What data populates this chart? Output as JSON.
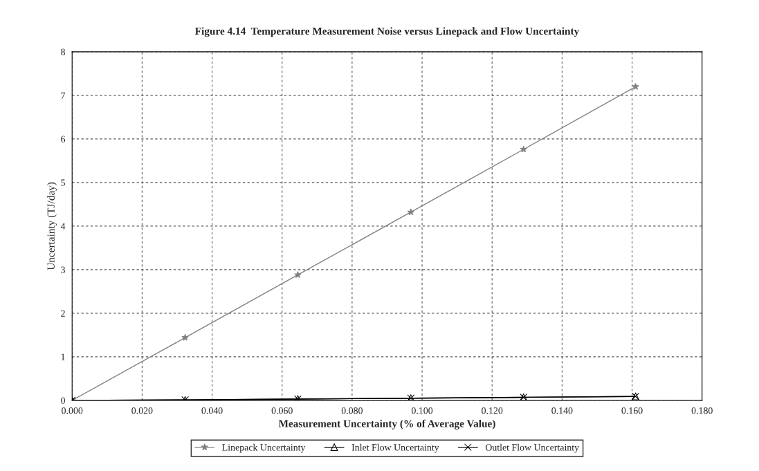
{
  "chart_data": {
    "type": "line",
    "title": "Figure 4.14  Temperature Measurement Noise versus Linepack and Flow Uncertainty",
    "xlabel": "Measurement Uncertainty (% of Average Value)",
    "ylabel": "Uncertainty (TJ/day)",
    "x": [
      0.0,
      0.0323,
      0.0645,
      0.0968,
      0.129,
      0.161
    ],
    "series": [
      {
        "name": "Linepack Uncertainty",
        "color": "#808080",
        "marker": "star",
        "values": [
          0,
          1.44,
          2.88,
          4.32,
          5.76,
          7.2
        ]
      },
      {
        "name": "Inlet Flow Uncertainty",
        "color": "#000000",
        "marker": "triangle",
        "values": [
          0,
          0.01,
          0.03,
          0.05,
          0.07,
          0.09
        ]
      },
      {
        "name": "Outlet Flow Uncertainty",
        "color": "#000000",
        "marker": "cross",
        "values": [
          0,
          0.01,
          0.03,
          0.05,
          0.07,
          0.09
        ]
      }
    ],
    "xlim": [
      0,
      0.18
    ],
    "xticks": [
      {
        "value": 0,
        "label": "0.000"
      },
      {
        "value": 0.02,
        "label": "0.020"
      },
      {
        "value": 0.04,
        "label": "0.040"
      },
      {
        "value": 0.06,
        "label": "0.060"
      },
      {
        "value": 0.08,
        "label": "0.080"
      },
      {
        "value": 0.1,
        "label": "0.100"
      },
      {
        "value": 0.12,
        "label": "0.120"
      },
      {
        "value": 0.14,
        "label": "0.140"
      },
      {
        "value": 0.16,
        "label": "0.160"
      },
      {
        "value": 0.18,
        "label": "0.180"
      }
    ],
    "ylim": [
      0,
      8
    ],
    "yticks": [
      0,
      1,
      2,
      3,
      4,
      5,
      6,
      7,
      8
    ],
    "grid": true,
    "legend": "bottom",
    "line_style": "solid"
  }
}
